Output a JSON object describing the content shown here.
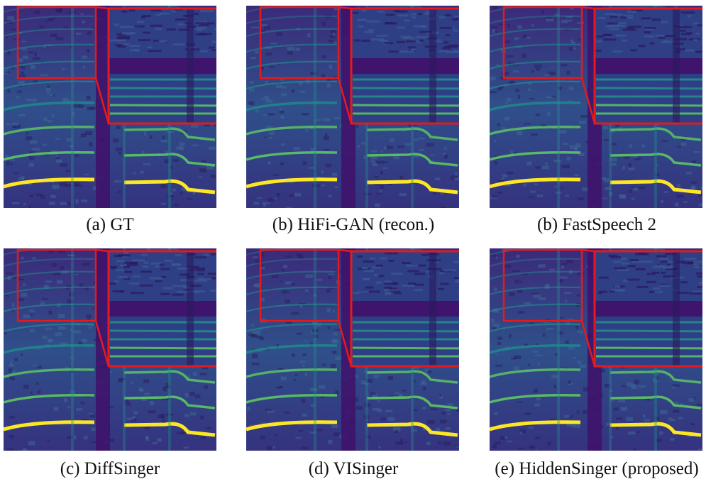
{
  "figure": {
    "panels": [
      {
        "caption": "(a) GT",
        "variant": 0
      },
      {
        "caption": "(b) HiFi-GAN (recon.)",
        "variant": 1
      },
      {
        "caption": "(b) FastSpeech 2",
        "variant": 2
      },
      {
        "caption": "(c) DiffSinger",
        "variant": 3
      },
      {
        "caption": "(d) VISinger",
        "variant": 4
      },
      {
        "caption": "(e) HiddenSinger (proposed)",
        "variant": 5
      }
    ],
    "colors": {
      "background": "#40106a",
      "harmonic_bright": "#fde725",
      "harmonic_mid": "#5ec962",
      "harmonic_teal": "#21918c",
      "zoom_box": "#e41a1c"
    },
    "colormap": "viridis"
  }
}
